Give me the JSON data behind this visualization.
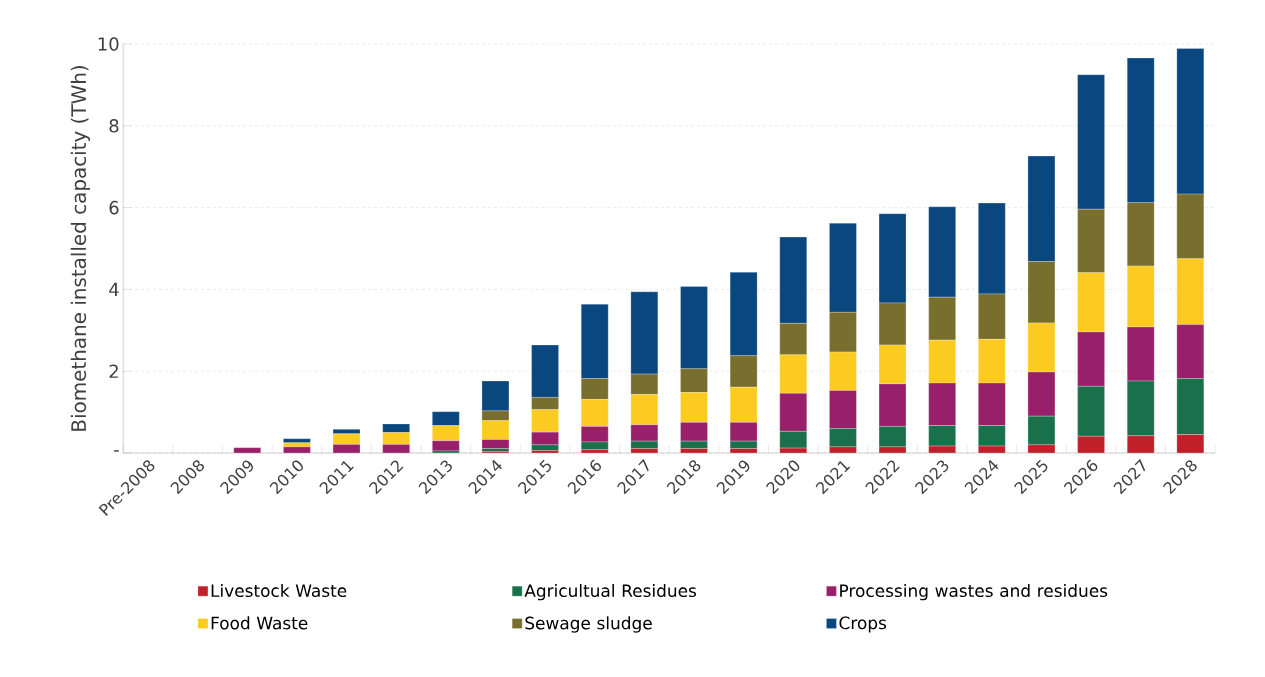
{
  "chart_data": {
    "type": "bar",
    "stacked": true,
    "ylabel": "Biomethane installed capacity (TWh)",
    "categories": [
      "Pre-2008",
      "2008",
      "2009",
      "2010",
      "2011",
      "2012",
      "2013",
      "2014",
      "2015",
      "2016",
      "2017",
      "2018",
      "2019",
      "2020",
      "2021",
      "2022",
      "2023",
      "2024",
      "2025",
      "2026",
      "2027",
      "2028"
    ],
    "series": [
      {
        "name": "Livestock Waste",
        "color": "#c0202a",
        "values": [
          0,
          0,
          0,
          0,
          0,
          0,
          0,
          0.03,
          0.06,
          0.08,
          0.11,
          0.11,
          0.11,
          0.12,
          0.15,
          0.15,
          0.17,
          0.17,
          0.2,
          0.41,
          0.42,
          0.45
        ]
      },
      {
        "name": "Agricultual Residues",
        "color": "#19704a",
        "values": [
          0,
          0,
          0,
          0,
          0,
          0,
          0.05,
          0.08,
          0.14,
          0.19,
          0.18,
          0.18,
          0.18,
          0.41,
          0.45,
          0.5,
          0.5,
          0.5,
          0.7,
          1.22,
          1.34,
          1.37
        ]
      },
      {
        "name": "Processing wastes and residues",
        "color": "#98206a",
        "values": [
          0,
          0,
          0.13,
          0.15,
          0.21,
          0.21,
          0.25,
          0.22,
          0.31,
          0.38,
          0.4,
          0.46,
          0.46,
          0.93,
          0.93,
          1.04,
          1.04,
          1.04,
          1.08,
          1.33,
          1.32,
          1.32
        ]
      },
      {
        "name": "Food Waste",
        "color": "#fccb22",
        "values": [
          0,
          0,
          0,
          0.1,
          0.26,
          0.29,
          0.37,
          0.46,
          0.55,
          0.66,
          0.74,
          0.73,
          0.86,
          0.94,
          0.94,
          0.95,
          1.05,
          1.07,
          1.2,
          1.45,
          1.49,
          1.61
        ]
      },
      {
        "name": "Sewage sludge",
        "color": "#786e2e",
        "values": [
          0,
          0,
          0,
          0,
          0,
          0,
          0,
          0.24,
          0.3,
          0.51,
          0.5,
          0.58,
          0.77,
          0.77,
          0.97,
          1.03,
          1.05,
          1.11,
          1.5,
          1.55,
          1.55,
          1.58
        ]
      },
      {
        "name": "Crops",
        "color": "#0a477f",
        "values": [
          0,
          0,
          0,
          0.1,
          0.11,
          0.21,
          0.34,
          0.73,
          1.28,
          1.82,
          2.01,
          2.01,
          2.04,
          2.11,
          2.18,
          2.18,
          2.21,
          2.22,
          2.58,
          3.29,
          3.54,
          3.56
        ]
      }
    ],
    "ylim": [
      0,
      10
    ],
    "yticks": [
      {
        "value": 0,
        "label": "-"
      },
      2,
      4,
      6,
      8,
      10
    ],
    "grid": "y",
    "legend": "bottom"
  }
}
